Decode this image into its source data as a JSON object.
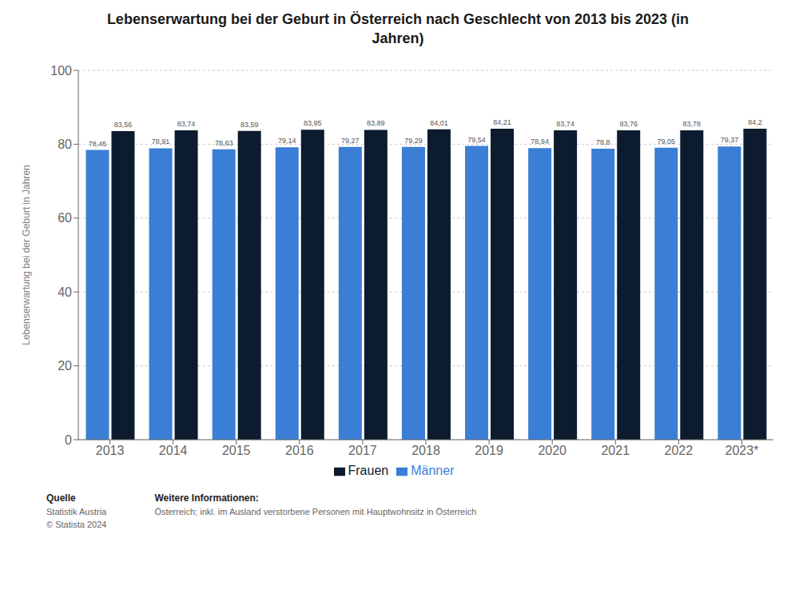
{
  "chart_data": {
    "type": "bar",
    "title": "Lebenserwartung bei der Geburt in Österreich nach Geschlecht von 2013 bis 2023 (in\nJahren)",
    "y_label": "Lebenserwartung bei der Geburt in Jahren",
    "categories": [
      "2013",
      "2014",
      "2015",
      "2016",
      "2017",
      "2018",
      "2019",
      "2020",
      "2021",
      "2022",
      "2023*"
    ],
    "series": [
      {
        "name": "Männer",
        "color": "#3a7fd5",
        "values": [
          78.45,
          78.91,
          78.63,
          79.14,
          79.27,
          79.29,
          79.54,
          78.94,
          78.8,
          79.05,
          79.37
        ],
        "value_labels": [
          "78,45",
          "78,91",
          "78,63",
          "79,14",
          "79,27",
          "79,29",
          "79,54",
          "78,94",
          "78,8",
          "79,05",
          "79,37"
        ]
      },
      {
        "name": "Frauen",
        "color": "#0d1b2e",
        "values": [
          83.56,
          83.74,
          83.59,
          83.95,
          83.89,
          84.01,
          84.21,
          83.74,
          83.76,
          83.78,
          84.2
        ],
        "value_labels": [
          "83,56",
          "83,74",
          "83,59",
          "83,95",
          "83,89",
          "84,01",
          "84,21",
          "83,74",
          "83,76",
          "83,78",
          "84,2"
        ]
      }
    ],
    "ylim": [
      0,
      100
    ],
    "yticks": [
      0,
      20,
      40,
      60,
      80,
      100
    ],
    "grid": true,
    "legend": "bottom",
    "data_labels": true,
    "annotations": [
      "Quelle",
      "Statistik Austria\n© Statista 2024",
      "Weitere Informationen:",
      "Österreich; inkl. im Ausland verstorbene Personen mit Hauptwohnsitz in Österreich"
    ]
  }
}
